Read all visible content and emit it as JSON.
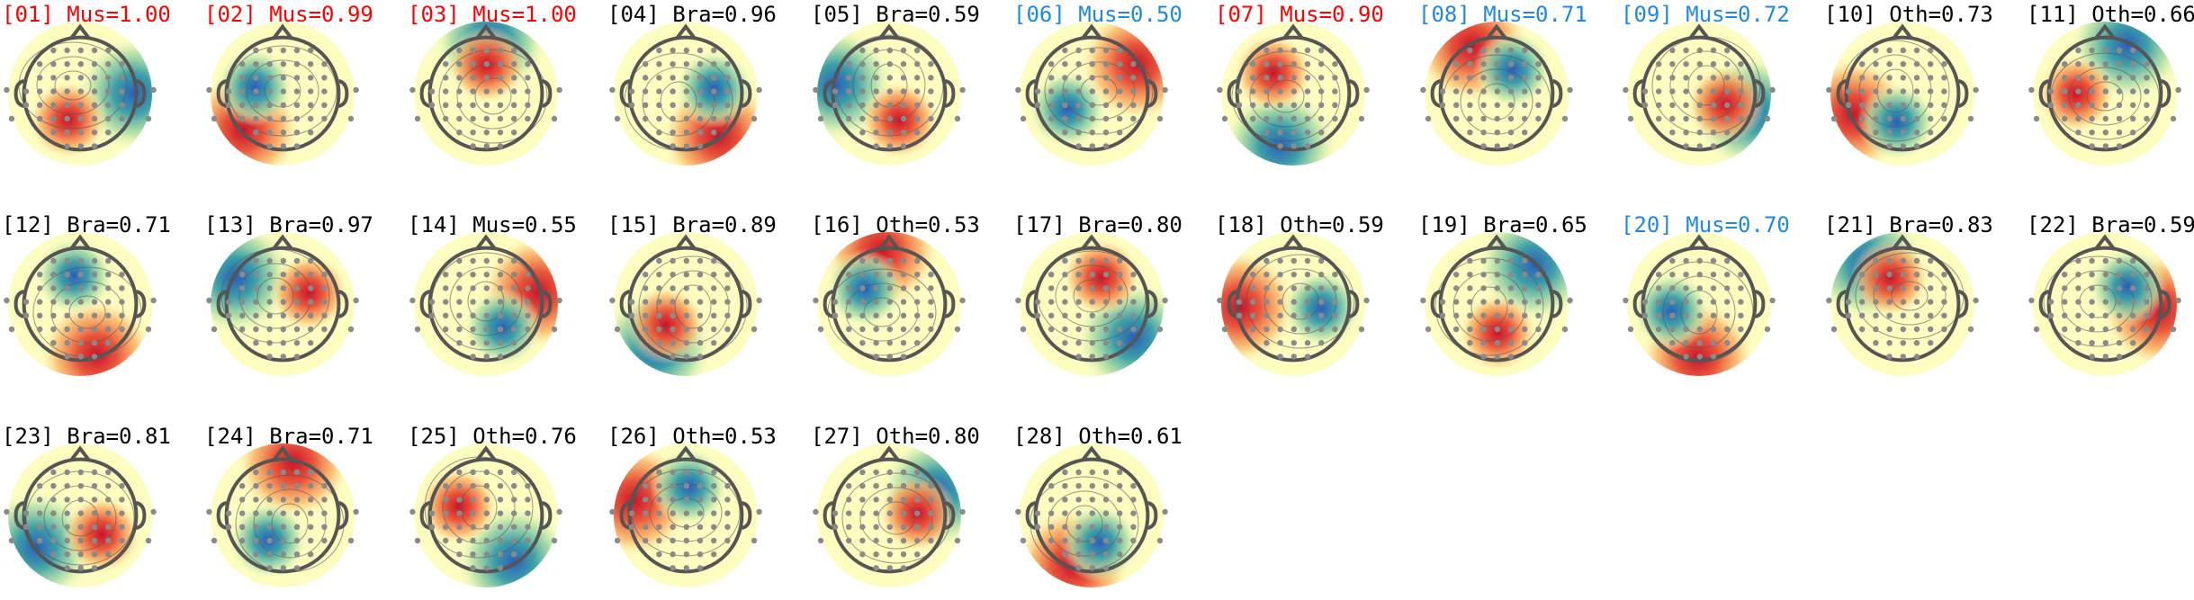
{
  "components": [
    {
      "label": "[01] Mus=1.00",
      "color": "#ff0000"
    },
    {
      "label": "[02] Mus=0.99",
      "color": "#ff0000"
    },
    {
      "label": "[03] Mus=1.00",
      "color": "#ff0000"
    },
    {
      "label": "[04] Bra=0.96",
      "color": "#000000"
    },
    {
      "label": "[05] Bra=0.59",
      "color": "#000000"
    },
    {
      "label": "[06] Mus=0.50",
      "color": "#1e88e5"
    },
    {
      "label": "[07] Mus=0.90",
      "color": "#ff0000"
    },
    {
      "label": "[08] Mus=0.71",
      "color": "#1e88e5"
    },
    {
      "label": "[09] Mus=0.72",
      "color": "#1e88e5"
    },
    {
      "label": "[10] Oth=0.73",
      "color": "#000000"
    },
    {
      "label": "[11] Oth=0.66",
      "color": "#000000"
    },
    {
      "label": "[12] Bra=0.71",
      "color": "#000000"
    },
    {
      "label": "[13] Bra=0.97",
      "color": "#000000"
    },
    {
      "label": "[14] Mus=0.55",
      "color": "#000000"
    },
    {
      "label": "[15] Bra=0.89",
      "color": "#000000"
    },
    {
      "label": "[16] Oth=0.53",
      "color": "#000000"
    },
    {
      "label": "[17] Bra=0.80",
      "color": "#000000"
    },
    {
      "label": "[18] Oth=0.59",
      "color": "#000000"
    },
    {
      "label": "[19] Bra=0.65",
      "color": "#000000"
    },
    {
      "label": "[20] Mus=0.70",
      "color": "#1e88e5"
    },
    {
      "label": "[21] Bra=0.83",
      "color": "#000000"
    },
    {
      "label": "[22] Bra=0.59",
      "color": "#000000"
    },
    {
      "label": "[23] Bra=0.81",
      "color": "#000000"
    },
    {
      "label": "[24] Bra=0.71",
      "color": "#000000"
    },
    {
      "label": "[25] Oth=0.76",
      "color": "#000000"
    },
    {
      "label": "[26] Oth=0.53",
      "color": "#000000"
    },
    {
      "label": "[27] Oth=0.80",
      "color": "#000000"
    },
    {
      "label": "[28] Oth=0.61",
      "color": "#000000"
    }
  ]
}
